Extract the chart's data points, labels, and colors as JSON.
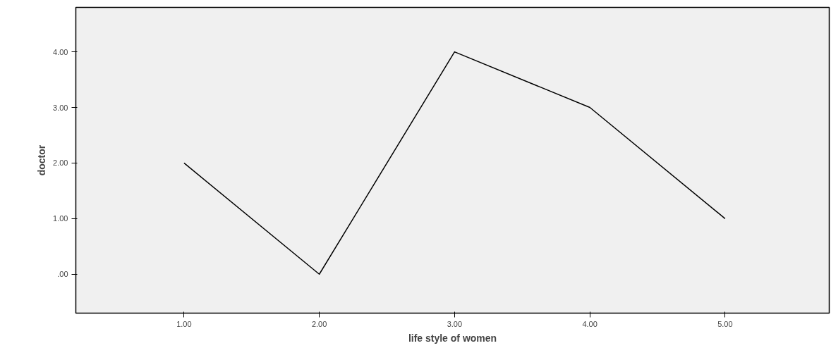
{
  "chart_data": {
    "type": "line",
    "xlabel": "life style of women",
    "ylabel": "doctor",
    "x": [
      1,
      2,
      3,
      4,
      5
    ],
    "series": [
      {
        "color": "#000000",
        "values": [
          2,
          0,
          4,
          3,
          1
        ]
      }
    ],
    "xlim": [
      0.2,
      5.77
    ],
    "ylim": [
      -0.7,
      4.8
    ],
    "xticks": [
      {
        "value": 1,
        "label": "1.00"
      },
      {
        "value": 2,
        "label": "2.00"
      },
      {
        "value": 3,
        "label": "3.00"
      },
      {
        "value": 4,
        "label": "4.00"
      },
      {
        "value": 5,
        "label": "5.00"
      }
    ],
    "yticks": [
      {
        "value": 0,
        "label": ".00"
      },
      {
        "value": 1,
        "label": "1.00"
      },
      {
        "value": 2,
        "label": "2.00"
      },
      {
        "value": 3,
        "label": "3.00"
      },
      {
        "value": 4,
        "label": "4.00"
      }
    ],
    "grid": false,
    "marker": "none",
    "line_style": "solid"
  }
}
